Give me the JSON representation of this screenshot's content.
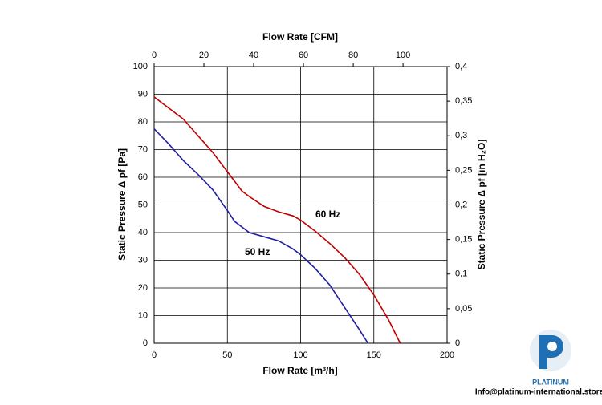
{
  "chart_data": {
    "type": "line",
    "xlabel": "Flow Rate [m³/h]",
    "x2label": "Flow Rate [CFM]",
    "ylabel": "Static Pressure Δ pf [Pa]",
    "y2label": "Static Pressure Δ pf [in H₂O]",
    "xlim": [
      0,
      200
    ],
    "xticks": [
      0,
      50,
      100,
      150,
      200
    ],
    "x2lim": [
      0,
      117.7
    ],
    "x2ticks": [
      0,
      20,
      40,
      60,
      80,
      100
    ],
    "ylim": [
      0,
      100
    ],
    "yticks": [
      0,
      10,
      20,
      30,
      40,
      50,
      60,
      70,
      80,
      90,
      100
    ],
    "y2lim": [
      0,
      0.4
    ],
    "y2ticks": [
      0,
      {
        "value": 0.05,
        "label": "0,05"
      },
      {
        "value": 0.1,
        "label": "0,1"
      },
      {
        "value": 0.15,
        "label": "0,15"
      },
      {
        "value": 0.2,
        "label": "0,2"
      },
      {
        "value": 0.25,
        "label": "0,25"
      },
      {
        "value": 0.3,
        "label": "0,3"
      },
      {
        "value": 0.35,
        "label": "0,35"
      },
      {
        "value": 0.4,
        "label": "0,4"
      }
    ],
    "grid": true,
    "series": [
      {
        "name": "60 Hz",
        "color": "#c00000",
        "x": [
          0,
          10,
          20,
          30,
          40,
          50,
          60,
          65,
          75,
          85,
          95,
          100,
          110,
          120,
          130,
          140,
          150,
          160,
          168
        ],
        "values": [
          89,
          85,
          81,
          75,
          69,
          62,
          55,
          53,
          49.5,
          47.5,
          46,
          44.5,
          40.5,
          36,
          31,
          25,
          17.5,
          8.5,
          0
        ]
      },
      {
        "name": "50 Hz",
        "color": "#1f1fa0",
        "x": [
          0,
          10,
          20,
          30,
          40,
          50,
          55,
          65,
          75,
          85,
          95,
          100,
          110,
          120,
          130,
          140,
          146
        ],
        "values": [
          77.5,
          72,
          66,
          61,
          55.5,
          48,
          44,
          40,
          38.5,
          37,
          34,
          32,
          27,
          21,
          13,
          5,
          0
        ]
      }
    ]
  },
  "logo_text": "PLATINUM",
  "footer": "Info@platinum-international.store"
}
